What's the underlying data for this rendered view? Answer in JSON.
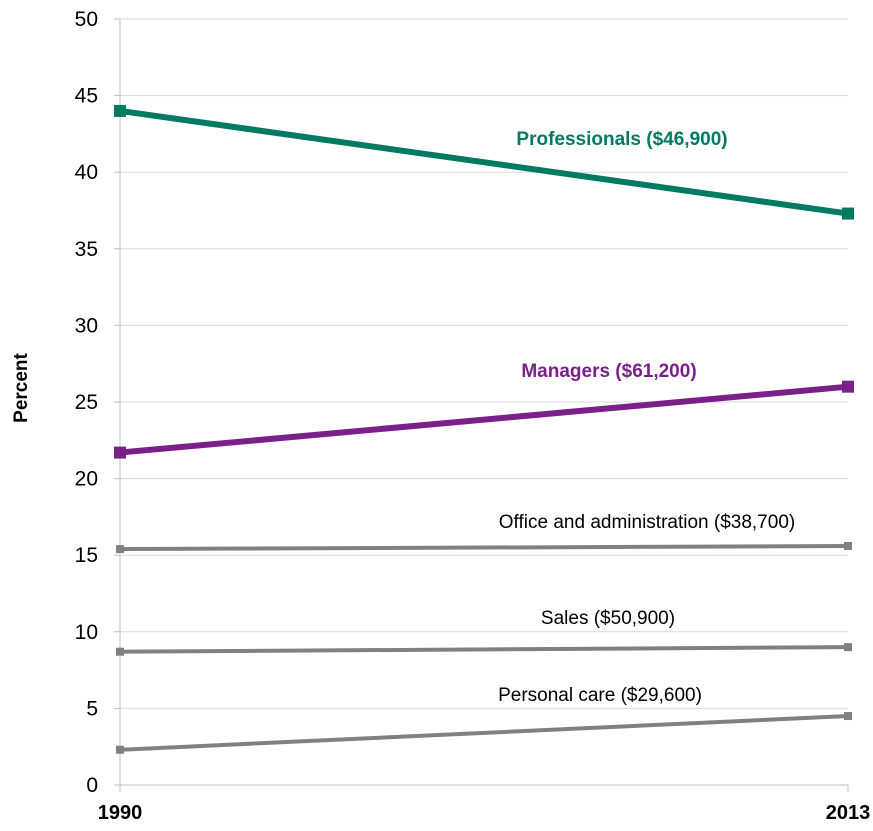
{
  "chart_data": {
    "type": "line",
    "title": "",
    "xlabel": "",
    "ylabel": "Percent",
    "x": [
      "1990",
      "2013"
    ],
    "ylim": [
      0,
      50
    ],
    "yticks": [
      0,
      5,
      10,
      15,
      20,
      25,
      30,
      35,
      40,
      45,
      50
    ],
    "grid": true,
    "legend": "none",
    "series": [
      {
        "name": "Professionals ($46,900)",
        "values": [
          44,
          37.3
        ],
        "color": "#007A63",
        "bold": true,
        "marker": "square"
      },
      {
        "name": "Managers ($61,200)",
        "values": [
          21.7,
          26
        ],
        "color": "#7B1F8A",
        "bold": true,
        "marker": "square"
      },
      {
        "name": "Office and administration ($38,700)",
        "values": [
          15.4,
          15.6
        ],
        "color": "#808080",
        "bold": false,
        "marker": "square"
      },
      {
        "name": "Sales ($50,900)",
        "values": [
          8.7,
          9.0
        ],
        "color": "#808080",
        "bold": false,
        "marker": "square"
      },
      {
        "name": "Personal care ($29,600)",
        "values": [
          2.3,
          4.5
        ],
        "color": "#808080",
        "bold": false,
        "marker": "square"
      }
    ]
  }
}
